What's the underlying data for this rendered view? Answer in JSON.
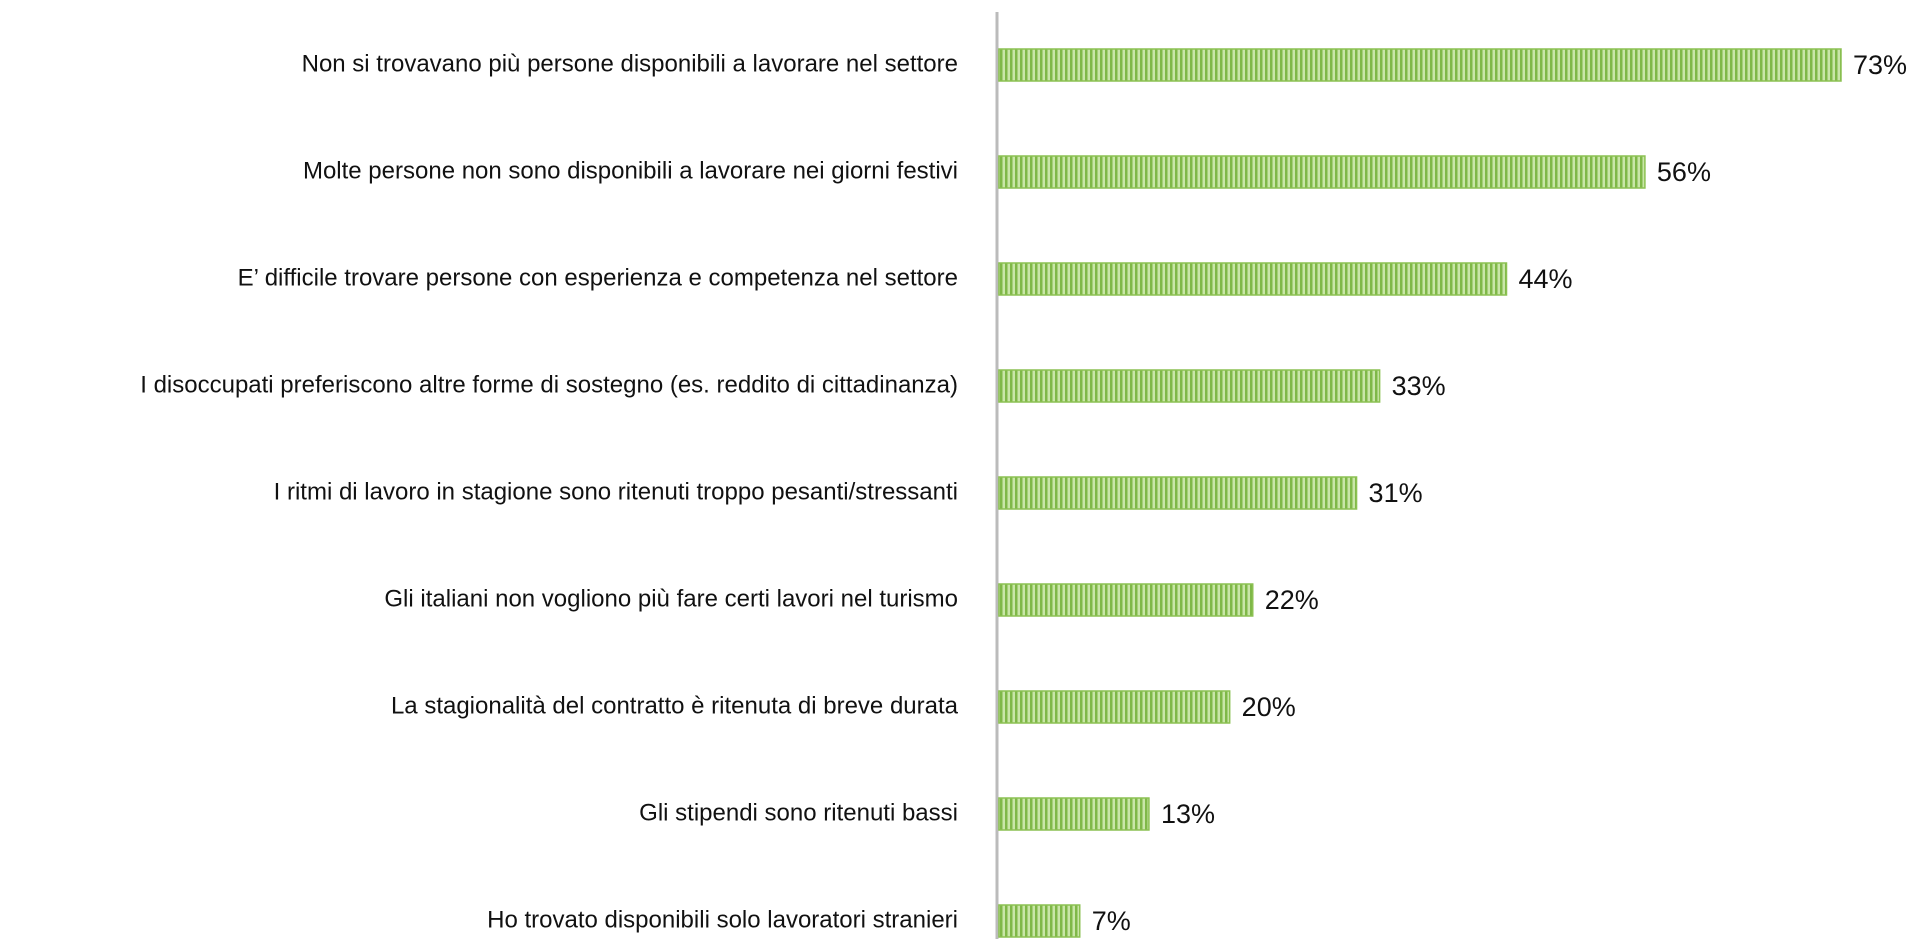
{
  "chart_data": {
    "type": "barh",
    "categories": [
      "Non si trovavano più persone disponibili a lavorare nel settore",
      "Molte persone non sono disponibili a lavorare nei giorni festivi",
      "E’ difficile trovare persone con esperienza e competenza nel settore",
      "I disoccupati preferiscono altre forme di sostegno (es. reddito di cittadinanza)",
      "I ritmi di lavoro in stagione sono ritenuti troppo pesanti/stressanti",
      "Gli italiani non vogliono più fare certi lavori nel turismo",
      "La stagionalità del contratto è ritenuta di breve durata",
      "Gli stipendi sono ritenuti bassi",
      "Ho trovato disponibili solo lavoratori stranieri"
    ],
    "values": [
      73,
      56,
      44,
      33,
      31,
      22,
      20,
      13,
      7
    ],
    "value_labels": [
      "73%",
      "56%",
      "44%",
      "33%",
      "31%",
      "22%",
      "20%",
      "13%",
      "7%"
    ],
    "color": "#8cc152"
  }
}
